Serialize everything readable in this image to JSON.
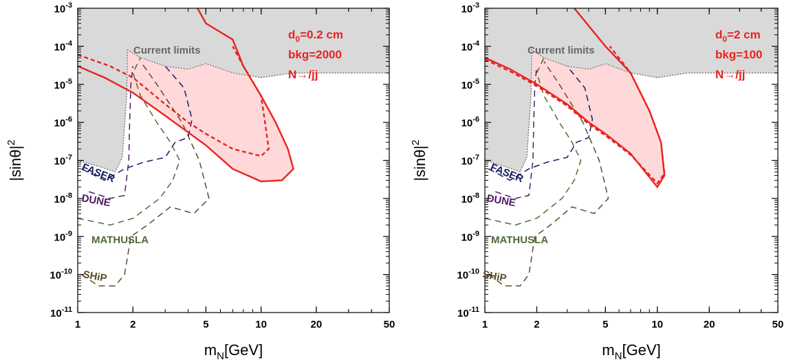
{
  "chart_data": [
    {
      "type": "line",
      "xlabel": "m_N[GeV]",
      "ylabel": "|sinθ|^2",
      "xscale": "log",
      "yscale": "log",
      "xlim": [
        1,
        50
      ],
      "ylim": [
        1e-11,
        0.001
      ],
      "x_ticks": [
        {
          "value": 1,
          "label": "1"
        },
        {
          "value": 2,
          "label": "2"
        },
        {
          "value": 5,
          "label": "5"
        },
        {
          "value": 10,
          "label": "10"
        },
        {
          "value": 20,
          "label": "20"
        },
        {
          "value": 50,
          "label": "50"
        }
      ],
      "y_ticks": [
        {
          "value": -3,
          "base": "10",
          "exp": "-3"
        },
        {
          "value": -4,
          "base": "10",
          "exp": "-4"
        },
        {
          "value": -5,
          "base": "10",
          "exp": "-5"
        },
        {
          "value": -6,
          "base": "10",
          "exp": "-6"
        },
        {
          "value": -7,
          "base": "10",
          "exp": "-7"
        },
        {
          "value": -8,
          "base": "10",
          "exp": "-8"
        },
        {
          "value": -9,
          "base": "10",
          "exp": "-9"
        },
        {
          "value": -10,
          "base": "10",
          "exp": "-10"
        },
        {
          "value": -11,
          "base": "10",
          "exp": "-11"
        }
      ],
      "annotation": {
        "d0": "d",
        "d0_sub": "0",
        "d0_rest": "=0.2 cm",
        "bkg": "bkg=2000",
        "decay": "N→/jj"
      },
      "current_limits_label": "Current limits",
      "series": [
        {
          "name": "Current limits",
          "style": "gray-filled",
          "color": "#d9d9d9",
          "points": [
            [
              1,
              1e-07
            ],
            [
              1.3,
              7e-08
            ],
            [
              1.6,
              5e-08
            ],
            [
              1.75,
              1.2e-07
            ],
            [
              1.85,
              5e-06
            ],
            [
              1.87,
              8e-05
            ],
            [
              2.2,
              5e-05
            ],
            [
              3,
              3e-05
            ],
            [
              4,
              2.5e-05
            ],
            [
              5,
              3.5e-05
            ],
            [
              7,
              2e-05
            ],
            [
              10,
              1.5e-05
            ],
            [
              15,
              2e-05
            ],
            [
              30,
              2e-05
            ],
            [
              50,
              2e-05
            ]
          ]
        },
        {
          "name": "FASER",
          "style": "dashed",
          "color": "#14195f",
          "points": [
            [
              1.05,
              6e-08
            ],
            [
              1.4,
              3e-08
            ],
            [
              1.8,
              6e-08
            ],
            [
              2.3,
              9e-08
            ],
            [
              3,
              1.2e-07
            ],
            [
              3.4,
              3e-07
            ],
            [
              4,
              4e-07
            ],
            [
              4.2,
              1.2e-06
            ],
            [
              3.8,
              8e-06
            ],
            [
              3,
              3e-05
            ]
          ]
        },
        {
          "name": "DUNE",
          "style": "dashed",
          "color": "#4f1a62",
          "points": [
            [
              1.15,
              1.5e-08
            ],
            [
              1.5,
              1e-08
            ],
            [
              1.8,
              1.2e-08
            ],
            [
              1.9,
              1e-07
            ],
            [
              1.92,
              1e-06
            ],
            [
              1.95,
              1e-05
            ],
            [
              2,
              3e-05
            ]
          ]
        },
        {
          "name": "MATHUSLA",
          "style": "dashed",
          "color": "#4f6a34",
          "points": [
            [
              1,
              3e-09
            ],
            [
              1.5,
              2e-09
            ],
            [
              2,
              3e-09
            ],
            [
              2.8,
              1e-08
            ],
            [
              3.3,
              3e-08
            ],
            [
              3.6,
              1e-07
            ],
            [
              3.2,
              3e-07
            ],
            [
              2.7,
              1e-06
            ],
            [
              2.2,
              5e-06
            ],
            [
              2,
              2e-05
            ],
            [
              2.2,
              5e-05
            ]
          ]
        },
        {
          "name": "SHiP",
          "style": "dashed",
          "color": "#5b4a2a",
          "points": [
            [
              1.05,
              1e-10
            ],
            [
              1.3,
              5e-11
            ],
            [
              1.6,
              5e-11
            ],
            [
              1.8,
              1e-10
            ],
            [
              1.95,
              1e-09
            ],
            [
              2.4,
              2e-09
            ],
            [
              3.2,
              6e-09
            ],
            [
              4.3,
              4e-09
            ],
            [
              5.2,
              1e-08
            ],
            [
              4.6,
              1e-07
            ],
            [
              3.7,
              1e-06
            ],
            [
              2.7,
              1e-05
            ],
            [
              2.2,
              4e-05
            ]
          ]
        },
        {
          "name": "",
          "style": "solid",
          "color": "#e8231f",
          "points": [
            [
              1,
              3e-05
            ],
            [
              1.4,
              1.5e-05
            ],
            [
              2,
              6e-06
            ],
            [
              3,
              1.5e-06
            ],
            [
              5,
              2.5e-07
            ],
            [
              7,
              6e-08
            ],
            [
              10,
              2.8e-08
            ],
            [
              13,
              3e-08
            ],
            [
              15,
              6e-08
            ],
            [
              14,
              2e-07
            ],
            [
              12,
              1e-06
            ],
            [
              10,
              5e-06
            ],
            [
              8,
              3e-05
            ],
            [
              7,
              0.00015
            ],
            [
              5,
              0.0004
            ],
            [
              4.5,
              0.001
            ]
          ]
        },
        {
          "name": "",
          "style": "dashed",
          "color": "#e8231f",
          "points": [
            [
              1,
              6e-05
            ],
            [
              1.5,
              3e-05
            ],
            [
              2,
              1.5e-05
            ],
            [
              3,
              3e-06
            ],
            [
              4,
              1e-06
            ],
            [
              5,
              5e-07
            ],
            [
              7,
              2e-07
            ],
            [
              10,
              1.3e-07
            ],
            [
              11,
              2e-07
            ],
            [
              10.5,
              1e-06
            ],
            [
              10,
              5e-06
            ],
            [
              8,
              3e-05
            ],
            [
              7,
              0.0001
            ]
          ]
        }
      ],
      "shaded_region": {
        "color": "#ffd7d7"
      }
    },
    {
      "type": "line",
      "xlabel": "m_N[GeV]",
      "ylabel": "|sinθ|^2",
      "xscale": "log",
      "yscale": "log",
      "xlim": [
        1,
        50
      ],
      "ylim": [
        1e-11,
        0.001
      ],
      "x_ticks": [
        {
          "value": 1,
          "label": "1"
        },
        {
          "value": 2,
          "label": "2"
        },
        {
          "value": 5,
          "label": "5"
        },
        {
          "value": 10,
          "label": "10"
        },
        {
          "value": 20,
          "label": "20"
        },
        {
          "value": 50,
          "label": "50"
        }
      ],
      "y_ticks": [
        {
          "value": -3,
          "base": "10",
          "exp": "-3"
        },
        {
          "value": -4,
          "base": "10",
          "exp": "-4"
        },
        {
          "value": -5,
          "base": "10",
          "exp": "-5"
        },
        {
          "value": -6,
          "base": "10",
          "exp": "-6"
        },
        {
          "value": -7,
          "base": "10",
          "exp": "-7"
        },
        {
          "value": -8,
          "base": "10",
          "exp": "-8"
        },
        {
          "value": -9,
          "base": "10",
          "exp": "-9"
        },
        {
          "value": -10,
          "base": "10",
          "exp": "-10"
        },
        {
          "value": -11,
          "base": "10",
          "exp": "-11"
        }
      ],
      "annotation": {
        "d0": "d",
        "d0_sub": "0",
        "d0_rest": "=2 cm",
        "bkg": "bkg=100",
        "decay": "N→/jj"
      },
      "current_limits_label": "Current limits",
      "series": [
        {
          "name": "Current limits",
          "style": "gray-filled",
          "color": "#d9d9d9",
          "points": [
            [
              1,
              1e-07
            ],
            [
              1.3,
              7e-08
            ],
            [
              1.6,
              5e-08
            ],
            [
              1.75,
              1.2e-07
            ],
            [
              1.85,
              5e-06
            ],
            [
              1.87,
              8e-05
            ],
            [
              2.2,
              5e-05
            ],
            [
              3,
              3e-05
            ],
            [
              4,
              2.5e-05
            ],
            [
              5,
              3.5e-05
            ],
            [
              7,
              2e-05
            ],
            [
              10,
              1.5e-05
            ],
            [
              15,
              2e-05
            ],
            [
              30,
              2e-05
            ],
            [
              50,
              2e-05
            ]
          ]
        },
        {
          "name": "FASER",
          "style": "dashed",
          "color": "#14195f",
          "points": [
            [
              1.05,
              6e-08
            ],
            [
              1.4,
              3e-08
            ],
            [
              1.8,
              6e-08
            ],
            [
              2.3,
              9e-08
            ],
            [
              3,
              1.2e-07
            ],
            [
              3.4,
              3e-07
            ],
            [
              4,
              4e-07
            ],
            [
              4.2,
              1.2e-06
            ],
            [
              3.8,
              8e-06
            ],
            [
              3,
              3e-05
            ]
          ]
        },
        {
          "name": "DUNE",
          "style": "dashed",
          "color": "#4f1a62",
          "points": [
            [
              1.15,
              1.5e-08
            ],
            [
              1.5,
              1e-08
            ],
            [
              1.8,
              1.2e-08
            ],
            [
              1.9,
              1e-07
            ],
            [
              1.92,
              1e-06
            ],
            [
              1.95,
              1e-05
            ],
            [
              2,
              3e-05
            ]
          ]
        },
        {
          "name": "MATHUSLA",
          "style": "dashed",
          "color": "#4f6a34",
          "points": [
            [
              1,
              3e-09
            ],
            [
              1.5,
              2e-09
            ],
            [
              2,
              3e-09
            ],
            [
              2.8,
              1e-08
            ],
            [
              3.3,
              3e-08
            ],
            [
              3.6,
              1e-07
            ],
            [
              3.2,
              3e-07
            ],
            [
              2.7,
              1e-06
            ],
            [
              2.2,
              5e-06
            ],
            [
              2,
              2e-05
            ],
            [
              2.2,
              5e-05
            ]
          ]
        },
        {
          "name": "SHiP",
          "style": "dashed",
          "color": "#5b4a2a",
          "points": [
            [
              1.05,
              1e-10
            ],
            [
              1.3,
              5e-11
            ],
            [
              1.6,
              5e-11
            ],
            [
              1.8,
              1e-10
            ],
            [
              1.95,
              1e-09
            ],
            [
              2.4,
              2e-09
            ],
            [
              3.2,
              6e-09
            ],
            [
              4.3,
              4e-09
            ],
            [
              5.2,
              1e-08
            ],
            [
              4.6,
              1e-07
            ],
            [
              3.7,
              1e-06
            ],
            [
              2.7,
              1e-05
            ],
            [
              2.2,
              4e-05
            ]
          ]
        },
        {
          "name": "",
          "style": "solid",
          "color": "#e8231f",
          "points": [
            [
              1,
              5e-05
            ],
            [
              1.4,
              2.5e-05
            ],
            [
              2,
              1e-05
            ],
            [
              3,
              3e-06
            ],
            [
              4,
              1e-06
            ],
            [
              5,
              5e-07
            ],
            [
              7,
              1.5e-07
            ],
            [
              10,
              2e-08
            ],
            [
              11,
              4e-08
            ],
            [
              10.5,
              3e-07
            ],
            [
              9,
              2e-06
            ],
            [
              7,
              2e-05
            ],
            [
              5,
              0.0001
            ],
            [
              3.3,
              0.001
            ]
          ]
        },
        {
          "name": "",
          "style": "dashed",
          "color": "#e8231f",
          "points": [
            [
              1,
              4.5e-05
            ],
            [
              1.4,
              2.2e-05
            ],
            [
              2,
              9e-06
            ],
            [
              3,
              2.7e-06
            ],
            [
              4,
              9e-07
            ],
            [
              5,
              4.5e-07
            ],
            [
              7,
              1.4e-07
            ],
            [
              10,
              2.5e-08
            ],
            [
              11,
              4.5e-08
            ],
            [
              10.5,
              3e-07
            ],
            [
              9,
              2e-06
            ],
            [
              7,
              2e-05
            ],
            [
              5.3,
              0.0001
            ]
          ]
        }
      ],
      "shaded_region": {
        "color": "#ffd7d7"
      }
    }
  ]
}
